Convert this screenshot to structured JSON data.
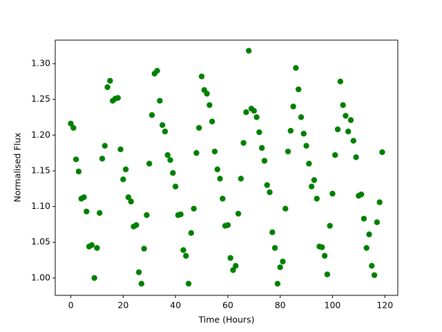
{
  "chart_data": {
    "type": "scatter",
    "xlabel": "Time (Hours)",
    "ylabel": "Normalised Flux",
    "color": "green",
    "x": [
      0,
      1,
      2,
      3,
      4,
      5,
      6,
      7,
      8,
      9,
      10,
      11,
      12,
      13,
      14,
      15,
      16,
      17,
      18,
      19,
      20,
      21,
      22,
      23,
      24,
      25,
      26,
      27,
      28,
      29,
      30,
      31,
      32,
      33,
      34,
      35,
      36,
      37,
      38,
      39,
      40,
      41,
      42,
      43,
      44,
      45,
      46,
      47,
      48,
      49,
      50,
      51,
      52,
      53,
      54,
      55,
      56,
      57,
      58,
      59,
      60,
      61,
      62,
      63,
      64,
      65,
      66,
      67,
      68,
      69,
      70,
      71,
      72,
      73,
      74,
      75,
      76,
      77,
      78,
      79,
      80,
      81,
      82,
      83,
      84,
      85,
      86,
      87,
      88,
      89,
      90,
      91,
      92,
      93,
      94,
      95,
      96,
      97,
      98,
      99,
      100,
      101,
      102,
      103,
      104,
      105,
      106,
      107,
      108,
      109,
      110,
      111,
      112,
      113,
      114,
      115,
      116,
      117,
      118,
      119
    ],
    "values": [
      1.216,
      1.21,
      1.166,
      1.149,
      1.111,
      1.113,
      1.093,
      1.044,
      1.046,
      1.0,
      1.042,
      1.091,
      1.167,
      1.185,
      1.267,
      1.276,
      1.248,
      1.251,
      1.252,
      1.18,
      1.138,
      1.152,
      1.113,
      1.107,
      1.072,
      1.074,
      1.008,
      0.992,
      1.041,
      1.088,
      1.16,
      1.228,
      1.286,
      1.29,
      1.248,
      1.214,
      1.205,
      1.172,
      1.165,
      1.147,
      1.128,
      1.088,
      1.089,
      1.039,
      1.031,
      0.992,
      1.063,
      1.097,
      1.175,
      1.21,
      1.282,
      1.263,
      1.258,
      1.242,
      1.219,
      1.177,
      1.152,
      1.139,
      1.111,
      1.073,
      1.074,
      1.028,
      1.011,
      1.017,
      1.09,
      1.139,
      1.189,
      1.232,
      1.318,
      1.237,
      1.234,
      1.225,
      1.204,
      1.182,
      1.164,
      1.13,
      1.12,
      1.064,
      1.042,
      0.992,
      1.015,
      1.023,
      1.097,
      1.177,
      1.206,
      1.24,
      1.294,
      1.264,
      1.225,
      1.202,
      1.185,
      1.16,
      1.128,
      1.137,
      1.111,
      1.044,
      1.043,
      1.031,
      1.005,
      1.073,
      1.118,
      1.172,
      1.208,
      1.275,
      1.242,
      1.227,
      1.205,
      1.221,
      1.192,
      1.169,
      1.115,
      1.117,
      1.083,
      1.042,
      1.061,
      1.017,
      1.004,
      1.078,
      1.106,
      1.176
    ],
    "xlim": [
      -5.95,
      124.95
    ],
    "ylim": [
      0.9757,
      1.3329
    ],
    "xticks": [
      0,
      20,
      40,
      60,
      80,
      100,
      120
    ],
    "yticks": [
      {
        "value": 1,
        "label": "1.00"
      },
      1.05,
      {
        "value": 1.1,
        "label": "1.10"
      },
      1.15,
      {
        "value": 1.2,
        "label": "1.20"
      },
      1.25,
      {
        "value": 1.3,
        "label": "1.30"
      }
    ]
  }
}
